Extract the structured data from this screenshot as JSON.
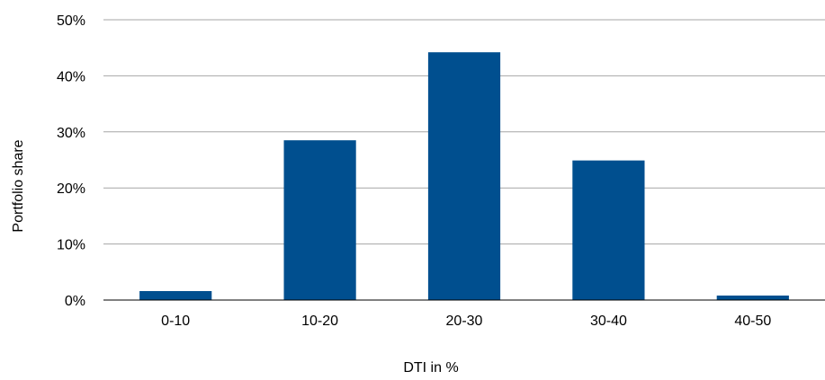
{
  "chart_data": {
    "type": "bar",
    "xlabel": "DTI in %",
    "ylabel": "Portfolio share",
    "categories": [
      "0-10",
      "10-20",
      "20-30",
      "30-40",
      "40-50"
    ],
    "values": [
      1.6,
      28.5,
      44.2,
      24.9,
      0.8
    ],
    "ylim": [
      0,
      50
    ],
    "yticks": [
      "0%",
      "10%",
      "20%",
      "30%",
      "40%",
      "50%"
    ],
    "grid": true,
    "legend": "none",
    "colors": {
      "bar": "#004f8f",
      "grid": "#a6a6a6",
      "axis": "#000000"
    }
  }
}
